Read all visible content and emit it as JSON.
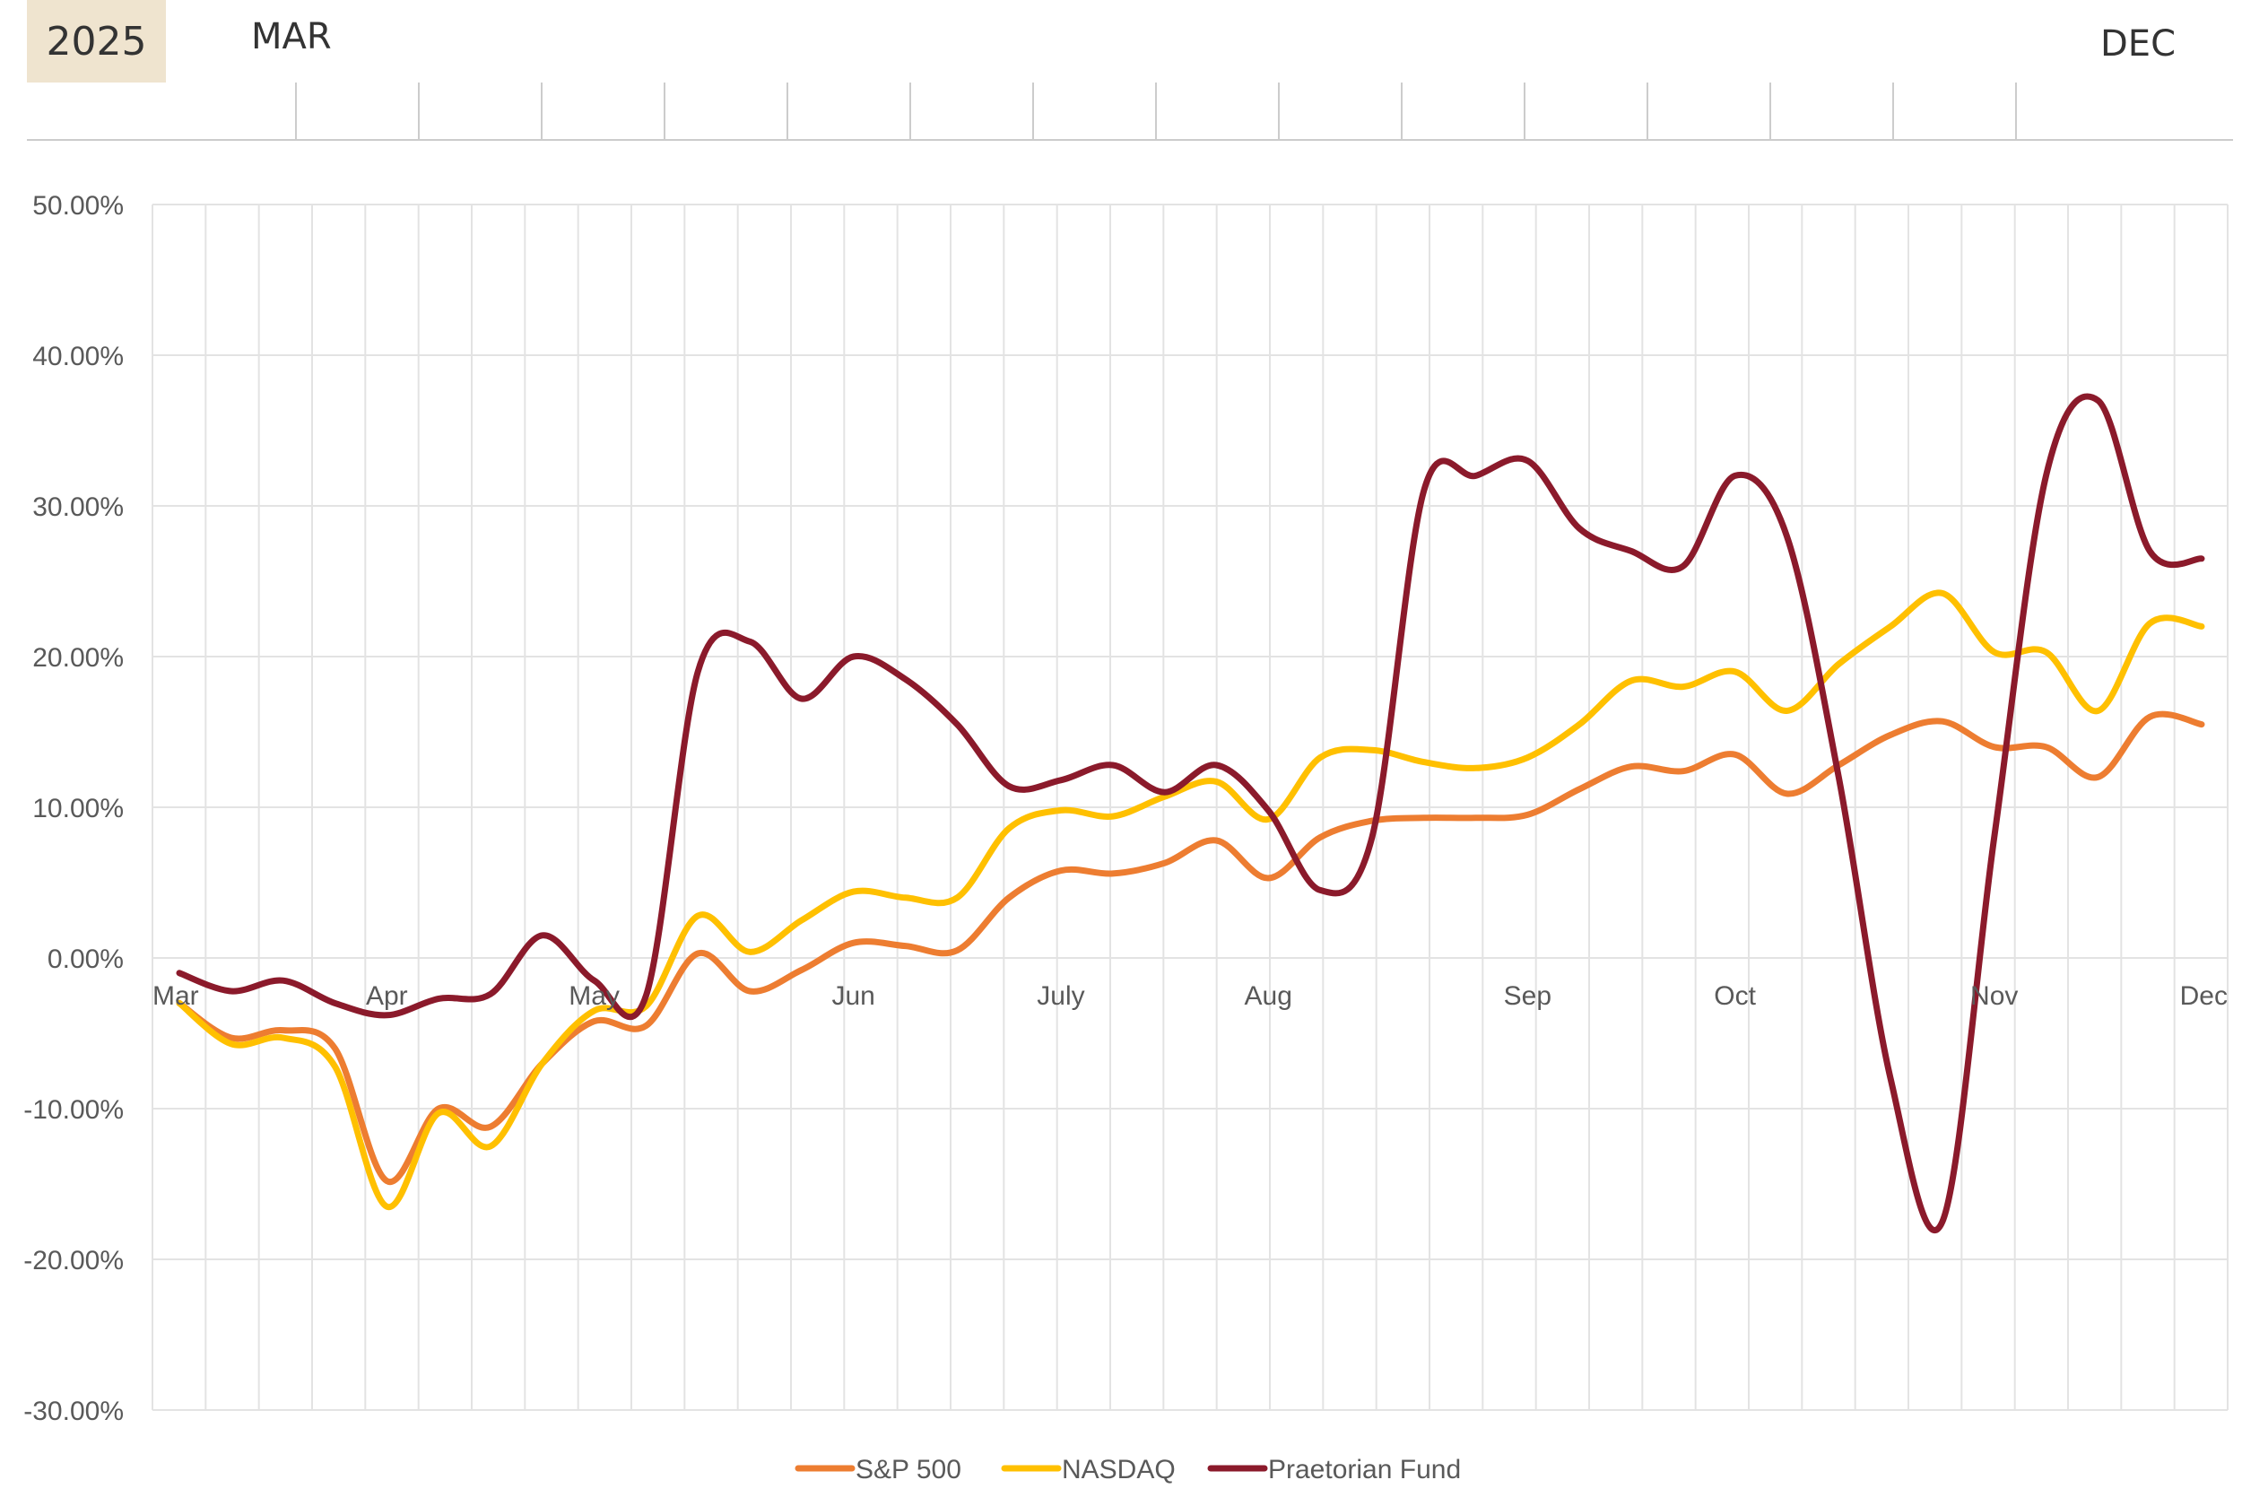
{
  "timeline": {
    "year": "2025",
    "start_label": "MAR",
    "end_label": "DEC"
  },
  "chart_data": {
    "type": "line",
    "title": "",
    "xlabel": "",
    "ylabel": "",
    "ylim": [
      -0.3,
      0.5
    ],
    "yticks": [
      {
        "value": 0.5,
        "label": "50.00%"
      },
      {
        "value": 0.4,
        "label": "40.00%"
      },
      {
        "value": 0.3,
        "label": "30.00%"
      },
      {
        "value": 0.2,
        "label": "20.00%"
      },
      {
        "value": 0.1,
        "label": "10.00%"
      },
      {
        "value": 0.0,
        "label": "0.00%"
      },
      {
        "value": -0.1,
        "label": "-10.00%"
      },
      {
        "value": -0.2,
        "label": "-20.00%"
      },
      {
        "value": -0.3,
        "label": "-30.00%"
      }
    ],
    "x_range": [
      0,
      39
    ],
    "x_labels": [
      {
        "x": 0,
        "label": "Mar"
      },
      {
        "x": 4,
        "label": "Apr"
      },
      {
        "x": 8,
        "label": "May"
      },
      {
        "x": 13,
        "label": "Jun"
      },
      {
        "x": 17,
        "label": "July"
      },
      {
        "x": 21,
        "label": "Aug"
      },
      {
        "x": 26,
        "label": "Sep"
      },
      {
        "x": 30,
        "label": "Oct"
      },
      {
        "x": 35,
        "label": "Nov"
      },
      {
        "x": 39,
        "label": "Dec"
      }
    ],
    "grid": true,
    "legend_position": "bottom",
    "series": [
      {
        "name": "S&P 500",
        "color": "#ed7d31",
        "values": [
          -0.03,
          -0.053,
          -0.048,
          -0.06,
          -0.148,
          -0.1,
          -0.112,
          -0.07,
          -0.042,
          -0.045,
          0.003,
          -0.022,
          -0.008,
          0.01,
          0.008,
          0.005,
          0.04,
          0.058,
          0.056,
          0.063,
          0.078,
          0.053,
          0.08,
          0.091,
          0.093,
          0.093,
          0.095,
          0.112,
          0.127,
          0.124,
          0.135,
          0.109,
          0.128,
          0.148,
          0.157,
          0.14,
          0.14,
          0.12,
          0.16,
          0.155
        ]
      },
      {
        "name": "NASDAQ",
        "color": "#ffc000",
        "values": [
          -0.03,
          -0.057,
          -0.053,
          -0.072,
          -0.165,
          -0.103,
          -0.125,
          -0.07,
          -0.035,
          -0.032,
          0.028,
          0.004,
          0.025,
          0.044,
          0.04,
          0.04,
          0.086,
          0.098,
          0.094,
          0.107,
          0.117,
          0.092,
          0.133,
          0.138,
          0.13,
          0.126,
          0.133,
          0.155,
          0.184,
          0.18,
          0.19,
          0.164,
          0.195,
          0.22,
          0.242,
          0.203,
          0.203,
          0.164,
          0.222,
          0.22
        ]
      },
      {
        "name": "Praetorian Fund",
        "color": "#8b1a2b",
        "values": [
          -0.01,
          -0.022,
          -0.015,
          -0.03,
          -0.038,
          -0.027,
          -0.024,
          0.015,
          -0.015,
          -0.025,
          0.19,
          0.21,
          0.172,
          0.2,
          0.185,
          0.155,
          0.114,
          0.118,
          0.128,
          0.11,
          0.128,
          0.098,
          0.045,
          0.08,
          0.31,
          0.32,
          0.33,
          0.285,
          0.27,
          0.26,
          0.32,
          0.28,
          0.12,
          -0.08,
          -0.175,
          0.08,
          0.32,
          0.37,
          0.27,
          0.265
        ]
      }
    ]
  }
}
